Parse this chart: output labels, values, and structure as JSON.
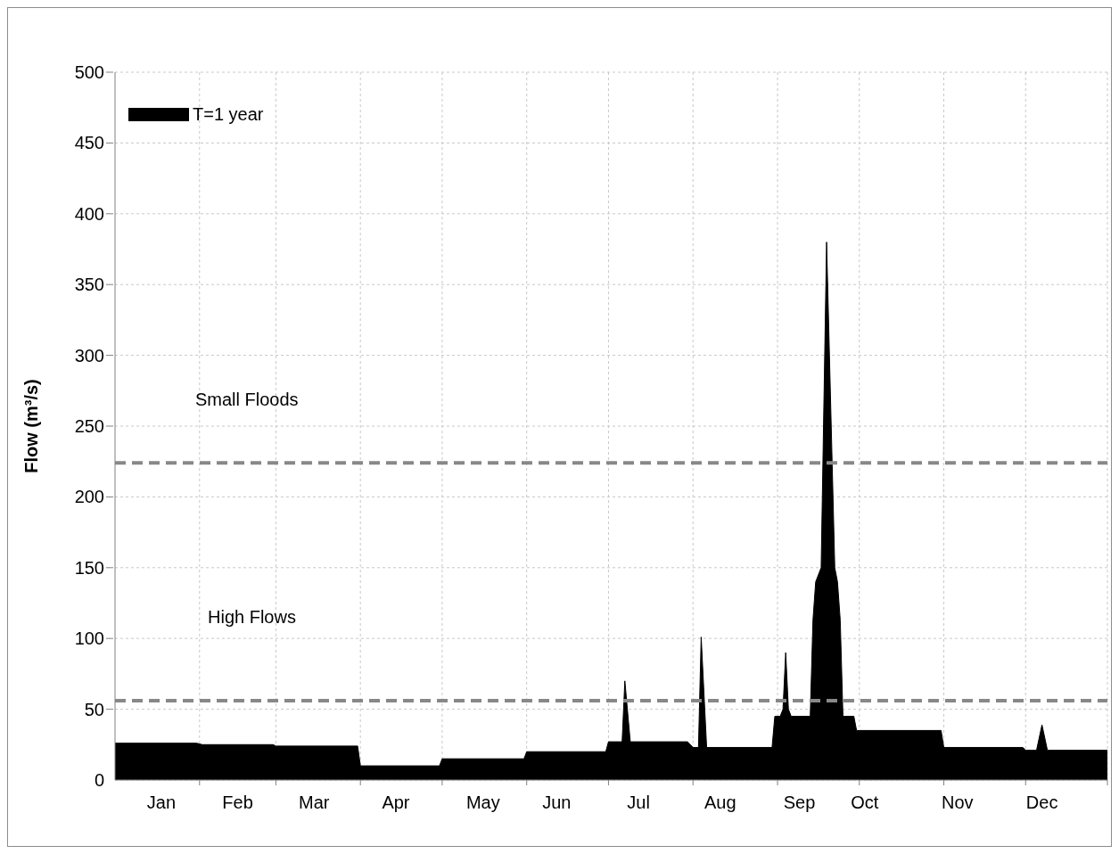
{
  "chart_data": {
    "type": "area",
    "ylabel": "Flow (m³/s)",
    "x": [
      "--01-01",
      "--01-31",
      "--02-02",
      "--02-28",
      "--03-01",
      "--03-31",
      "--04-01",
      "--04-30",
      "--05-01",
      "--05-31",
      "--06-01",
      "--06-30",
      "--07-01",
      "--07-06",
      "--07-07",
      "--07-09",
      "--07-30",
      "--08-01",
      "--08-03",
      "--08-04",
      "--08-06",
      "--08-30",
      "--08-31",
      "--09-02",
      "--09-03",
      "--09-04",
      "--09-05",
      "--09-06",
      "--09-13",
      "--09-14",
      "--09-15",
      "--09-17",
      "--09-19",
      "--09-22",
      "--09-23",
      "--09-24",
      "--09-25",
      "--09-29",
      "--09-30",
      "--10-31",
      "--11-01",
      "--11-30",
      "--12-01",
      "--12-05",
      "--12-07",
      "--12-09",
      "--12-31"
    ],
    "series": [
      {
        "name": "T=1 year",
        "color": "#000000",
        "values": [
          26,
          26,
          25,
          25,
          24,
          24,
          10,
          10,
          15,
          15,
          20,
          20,
          27,
          27,
          70,
          27,
          27,
          23,
          23,
          101,
          23,
          23,
          45,
          45,
          50,
          90,
          50,
          45,
          45,
          113,
          140,
          150,
          380,
          150,
          140,
          113,
          45,
          45,
          35,
          35,
          23,
          23,
          21,
          21,
          39,
          21,
          21
        ]
      }
    ],
    "xlim": [
      "--01-01",
      "--12-31"
    ],
    "xticks": [
      {
        "value": "--01-18",
        "label": "Jan"
      },
      {
        "value": "--02-01",
        "label": null
      },
      {
        "value": "--02-15",
        "label": "Feb"
      },
      {
        "value": "--03-01",
        "label": null
      },
      {
        "value": "--03-15",
        "label": "Mar"
      },
      {
        "value": "--04-01",
        "label": null
      },
      {
        "value": "--04-14",
        "label": "Apr"
      },
      {
        "value": "--05-01",
        "label": null
      },
      {
        "value": "--05-16",
        "label": "May"
      },
      {
        "value": "--06-01",
        "label": null
      },
      {
        "value": "--06-12",
        "label": "Jun"
      },
      {
        "value": "--07-01",
        "label": null
      },
      {
        "value": "--07-12",
        "label": "Jul"
      },
      {
        "value": "--08-01",
        "label": null
      },
      {
        "value": "--08-11",
        "label": "Aug"
      },
      {
        "value": "--09-01",
        "label": null
      },
      {
        "value": "--09-09",
        "label": "Sep"
      },
      {
        "value": "--10-01",
        "label": null
      },
      {
        "value": "--10-03",
        "label": "Oct"
      },
      {
        "value": "--11-01",
        "label": null
      },
      {
        "value": "--11-06",
        "label": "Nov"
      },
      {
        "value": "--12-01",
        "label": null
      },
      {
        "value": "--12-07",
        "label": "Dec"
      },
      {
        "value": "--12-31",
        "label": null
      }
    ],
    "ylim": [
      0,
      500
    ],
    "yticks": [
      0,
      50,
      100,
      150,
      200,
      250,
      300,
      350,
      400,
      450,
      500
    ],
    "grid": true,
    "legend": "top left",
    "ref_lines": [
      {
        "axis": "y",
        "value": 56,
        "color": "#888888",
        "line_style": "dashed"
      },
      {
        "axis": "y",
        "value": 224,
        "color": "#888888",
        "line_style": "dashed"
      }
    ],
    "annotations": [
      "Small Floods",
      "High Flows"
    ]
  }
}
